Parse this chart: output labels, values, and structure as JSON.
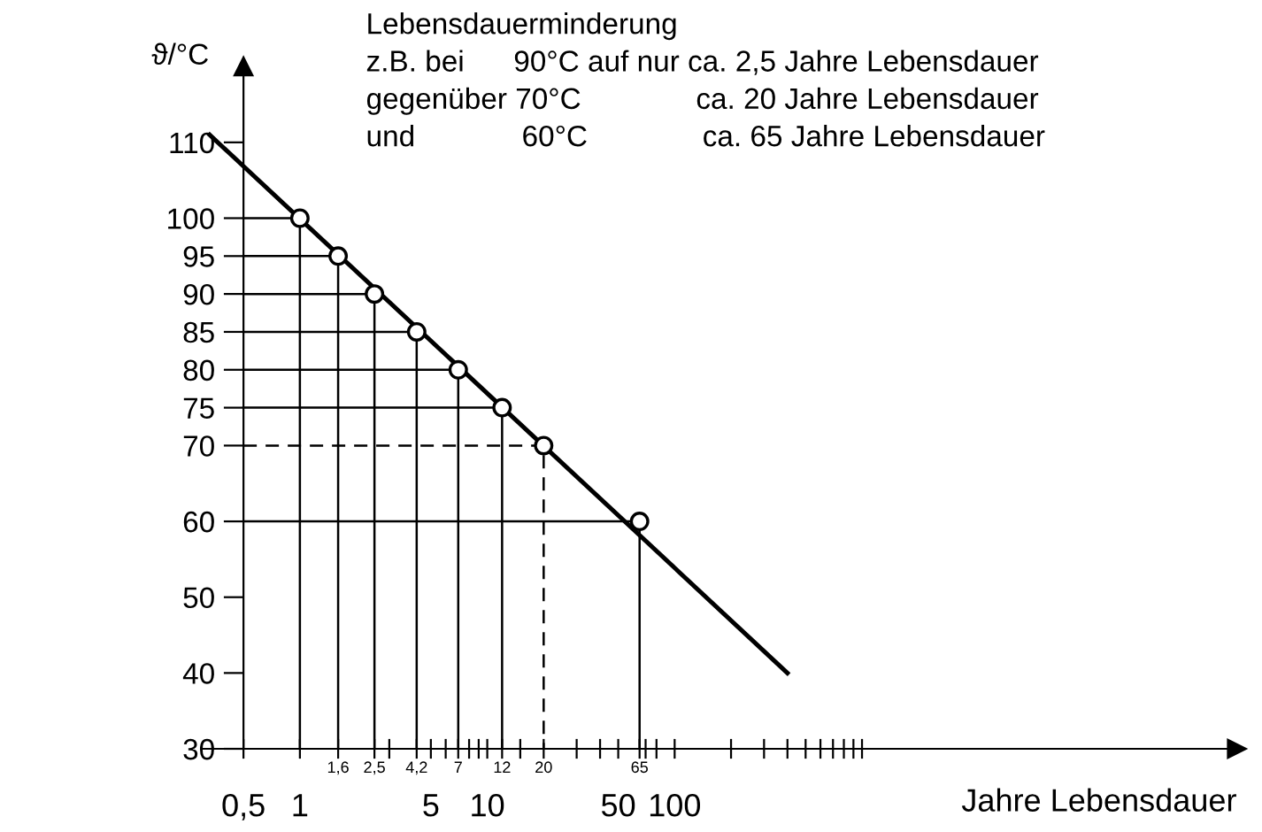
{
  "chart_data": {
    "type": "line",
    "ylabel": "ϑ/°C",
    "xlabel": "Jahre Lebensdauer",
    "log": "x",
    "xlim": [
      0.3,
      100000
    ],
    "ylim": [
      30,
      120
    ],
    "xticks": [
      {
        "value": 0.5,
        "label": "0,5"
      },
      1,
      {
        "value": 1.6,
        "label": null
      },
      {
        "value": 2.5,
        "label": null
      },
      {
        "value": 3,
        "label": null
      },
      {
        "value": 4.2,
        "label": null
      },
      5,
      {
        "value": 6,
        "label": null
      },
      {
        "value": 7,
        "label": null
      },
      {
        "value": 8,
        "label": null
      },
      {
        "value": 9,
        "label": null
      },
      10,
      {
        "value": 12,
        "label": null
      },
      {
        "value": 15,
        "label": null
      },
      {
        "value": 20,
        "label": null
      },
      {
        "value": 30,
        "label": null
      },
      {
        "value": 40,
        "label": null
      },
      50,
      {
        "value": 65,
        "label": null
      },
      {
        "value": 70,
        "label": null
      },
      {
        "value": 80,
        "label": null
      },
      100,
      {
        "value": 200,
        "label": null
      },
      {
        "value": 300,
        "label": null
      },
      {
        "value": 400,
        "label": null
      },
      {
        "value": 500,
        "label": null
      },
      {
        "value": 600,
        "label": null
      },
      {
        "value": 700,
        "label": null
      },
      {
        "value": 800,
        "label": null
      },
      {
        "value": 900,
        "label": null
      },
      {
        "value": 1000,
        "label": null
      }
    ],
    "yticks": [
      30,
      40,
      50,
      60,
      70,
      75,
      80,
      85,
      90,
      95,
      100,
      110
    ],
    "grid": false,
    "series": [
      {
        "color": "#000000",
        "x": [
          0.5,
          1,
          1
        ],
        "values": [
          100,
          100,
          30
        ],
        "line_style": "solid",
        "marker": "none"
      },
      {
        "color": "#000000",
        "x": [
          0.5,
          1.6,
          1.6
        ],
        "values": [
          95,
          95,
          30
        ],
        "line_style": "solid",
        "marker": "none"
      },
      {
        "color": "#000000",
        "x": [
          0.5,
          2.5,
          2.5
        ],
        "values": [
          90,
          90,
          30
        ],
        "line_style": "solid",
        "marker": "none"
      },
      {
        "color": "#000000",
        "x": [
          0.5,
          4.2,
          4.2
        ],
        "values": [
          85,
          85,
          30
        ],
        "line_style": "solid",
        "marker": "none"
      },
      {
        "color": "#000000",
        "x": [
          0.5,
          7,
          7
        ],
        "values": [
          80,
          80,
          30
        ],
        "line_style": "solid",
        "marker": "none"
      },
      {
        "color": "#000000",
        "x": [
          0.5,
          12,
          12
        ],
        "values": [
          75,
          75,
          30
        ],
        "line_style": "solid",
        "marker": "none"
      },
      {
        "color": "#000000",
        "x": [
          0.5,
          20,
          20
        ],
        "values": [
          70,
          70,
          30
        ],
        "line_style": "dashed",
        "marker": "none"
      },
      {
        "color": "#000000",
        "x": [
          0.5,
          65,
          65
        ],
        "values": [
          60,
          60,
          30
        ],
        "line_style": "solid",
        "marker": "none"
      },
      {
        "color": "#000000",
        "x": [
          0.33,
          400
        ],
        "values": [
          111,
          40
        ],
        "line_style": "solid",
        "marker": "none"
      },
      {
        "type": "scatter",
        "color": "#000000",
        "x": [
          1,
          1.6,
          2.5,
          4.2,
          7,
          12,
          20,
          65
        ],
        "values": [
          100,
          95,
          90,
          85,
          80,
          75,
          70,
          60
        ],
        "marker": "circle"
      }
    ],
    "annotations": [
      "Lebensdauerminderung",
      "z.B. bei      90°C auf nur ca. 2,5 Jahre Lebensdauer",
      "gegenüber 70°C              ca. 20 Jahre Lebensdauer",
      "und             60°C              ca. 65 Jahre Lebensdauer",
      {
        "text": "1,6",
        "x": 1.6,
        "y": 30
      },
      {
        "text": "2,5",
        "x": 2.5,
        "y": 30
      },
      {
        "text": "4,2",
        "x": 4.2,
        "y": 30
      },
      {
        "text": "7",
        "x": 7,
        "y": 30
      },
      {
        "text": "12",
        "x": 12,
        "y": 30
      },
      {
        "text": "20",
        "x": 20,
        "y": 30
      },
      {
        "text": "65",
        "x": 65,
        "y": 30
      }
    ]
  }
}
